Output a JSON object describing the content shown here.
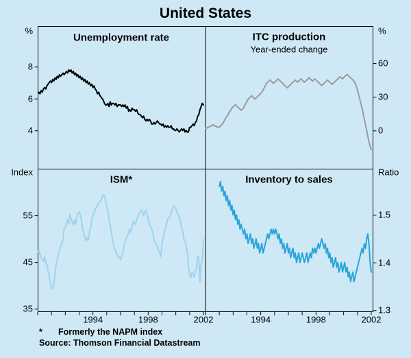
{
  "title": "United States",
  "palette": {
    "background": "#cfe8f5",
    "frame": "#000000",
    "text": "#000000"
  },
  "footnote": {
    "marker": "*",
    "text": "Formerly the NAPM index"
  },
  "source": "Source: Thomson Financial Datastream",
  "chart_data": [
    {
      "type": "line",
      "id": "unemployment-rate",
      "quadrant": "tl",
      "title": "Unemployment rate",
      "subtitle": "",
      "unit": "%",
      "ylim": [
        1.6,
        10.55
      ],
      "yticks": [
        {
          "value": 8,
          "label": "8"
        },
        {
          "value": 6,
          "label": "6"
        },
        {
          "value": 4,
          "label": "4"
        }
      ],
      "xlim": [
        1990,
        2002.15
      ],
      "xticks": [],
      "grid": false,
      "series": [
        {
          "name": "Unemployment rate",
          "color": "#000000",
          "start": 1990.0,
          "step": 0.0833333,
          "values": [
            6.3,
            6.4,
            6.3,
            6.5,
            6.4,
            6.6,
            6.7,
            6.6,
            6.8,
            6.9,
            7.0,
            7.1,
            7.0,
            7.2,
            7.1,
            7.3,
            7.2,
            7.4,
            7.3,
            7.5,
            7.4,
            7.5,
            7.6,
            7.5,
            7.6,
            7.7,
            7.6,
            7.8,
            7.7,
            7.8,
            7.6,
            7.7,
            7.5,
            7.6,
            7.4,
            7.5,
            7.3,
            7.4,
            7.2,
            7.3,
            7.1,
            7.2,
            7.0,
            7.1,
            6.9,
            7.0,
            6.8,
            6.9,
            6.7,
            6.8,
            6.6,
            6.5,
            6.3,
            6.4,
            6.2,
            6.1,
            6.0,
            5.9,
            5.7,
            5.6,
            5.6,
            5.7,
            5.5,
            5.8,
            5.6,
            5.7,
            5.7,
            5.6,
            5.7,
            5.5,
            5.6,
            5.6,
            5.6,
            5.5,
            5.6,
            5.5,
            5.6,
            5.4,
            5.5,
            5.2,
            5.3,
            5.2,
            5.4,
            5.3,
            5.3,
            5.2,
            5.3,
            5.1,
            5.0,
            5.0,
            4.9,
            4.8,
            4.9,
            4.7,
            4.6,
            4.7,
            4.6,
            4.7,
            4.6,
            4.4,
            4.4,
            4.5,
            4.4,
            4.5,
            4.6,
            4.5,
            4.4,
            4.4,
            4.3,
            4.4,
            4.2,
            4.3,
            4.2,
            4.3,
            4.2,
            4.2,
            4.3,
            4.1,
            4.1,
            4.0,
            4.0,
            4.1,
            4.0,
            3.9,
            4.0,
            4.1,
            4.0,
            4.1,
            3.9,
            4.0,
            3.9,
            3.9,
            4.2,
            4.2,
            4.3,
            4.4,
            4.3,
            4.5,
            4.6,
            4.9,
            5.0,
            5.3,
            5.5,
            5.7,
            5.6
          ]
        }
      ]
    },
    {
      "type": "line",
      "id": "itc-production",
      "quadrant": "tr",
      "title": "ITC production",
      "subtitle": "Year-ended change",
      "unit": "%",
      "ylim": [
        -34,
        93
      ],
      "yticks": [
        {
          "value": 60,
          "label": "60"
        },
        {
          "value": 30,
          "label": "30"
        },
        {
          "value": 0,
          "label": "0"
        }
      ],
      "xlim": [
        1990,
        2002.15
      ],
      "xticks": [],
      "grid": false,
      "series": [
        {
          "name": "ITC production year-ended change",
          "color": "#9b9b9b",
          "start": 1990.0,
          "step": 0.0833333,
          "values": [
            2,
            2,
            3,
            3,
            4,
            4,
            5,
            5,
            4,
            4,
            3,
            3,
            3,
            4,
            5,
            6,
            8,
            10,
            12,
            13,
            15,
            17,
            18,
            20,
            21,
            22,
            23,
            22,
            21,
            20,
            19,
            18,
            19,
            20,
            22,
            24,
            26,
            28,
            29,
            30,
            31,
            30,
            29,
            28,
            29,
            30,
            31,
            32,
            33,
            34,
            36,
            38,
            40,
            42,
            43,
            44,
            45,
            44,
            43,
            42,
            43,
            44,
            45,
            46,
            45,
            44,
            43,
            42,
            41,
            40,
            39,
            38,
            39,
            40,
            41,
            42,
            43,
            44,
            45,
            44,
            43,
            44,
            45,
            46,
            45,
            44,
            43,
            44,
            45,
            46,
            47,
            46,
            45,
            44,
            45,
            46,
            45,
            44,
            43,
            42,
            41,
            40,
            41,
            42,
            43,
            44,
            45,
            44,
            43,
            42,
            41,
            42,
            43,
            44,
            45,
            46,
            47,
            48,
            47,
            46,
            47,
            48,
            49,
            50,
            49,
            48,
            47,
            46,
            45,
            44,
            42,
            40,
            36,
            32,
            28,
            24,
            20,
            15,
            10,
            5,
            0,
            -5,
            -10,
            -14,
            -17
          ]
        }
      ]
    },
    {
      "type": "line",
      "id": "ism",
      "quadrant": "bl",
      "title": "ISM*",
      "subtitle": "",
      "unit": "Index",
      "ylim": [
        34.3,
        65.0
      ],
      "yticks": [
        {
          "value": 55,
          "label": "55"
        },
        {
          "value": 45,
          "label": "45"
        },
        {
          "value": 35,
          "label": "35"
        }
      ],
      "xlim": [
        1990,
        2002.15
      ],
      "xticks": [
        {
          "value": 1994,
          "label": "1994"
        },
        {
          "value": 1998,
          "label": "1998"
        },
        {
          "value": 2002,
          "label": "2002"
        }
      ],
      "grid": false,
      "series": [
        {
          "name": "ISM index",
          "color": "#9ed3ee",
          "start": 1990.0,
          "step": 0.0833333,
          "values": [
            47.2,
            47.4,
            46.8,
            46.0,
            45.4,
            45.2,
            46.2,
            45.0,
            44.4,
            43.2,
            41.8,
            40.6,
            39.2,
            39.4,
            40.0,
            42.4,
            44.5,
            45.5,
            46.8,
            47.6,
            48.4,
            49.0,
            49.8,
            52.2,
            52.4,
            53.5,
            54.1,
            53.1,
            55.2,
            54.3,
            53.6,
            53.0,
            54.1,
            53.2,
            54.5,
            55.4,
            55.8,
            55.2,
            53.9,
            52.1,
            51.2,
            50.3,
            49.5,
            50.2,
            49.7,
            51.6,
            52.3,
            54.1,
            55.1,
            55.5,
            56.3,
            56.8,
            57.2,
            57.6,
            57.9,
            58.3,
            58.9,
            59.4,
            59.2,
            58.1,
            57.1,
            55.8,
            54.2,
            52.9,
            51.5,
            49.8,
            48.6,
            47.9,
            47.1,
            46.5,
            46.2,
            46.0,
            45.5,
            46.3,
            47.1,
            48.4,
            49.3,
            50.2,
            50.5,
            51.3,
            52.1,
            51.4,
            52.6,
            53.8,
            53.5,
            53.1,
            54.2,
            54.6,
            55.3,
            55.8,
            56.2,
            56.0,
            54.9,
            55.6,
            56.1,
            55.3,
            54.1,
            53.2,
            52.6,
            52.1,
            51.3,
            49.8,
            49.2,
            48.9,
            48.3,
            47.6,
            46.9,
            46.2,
            49.0,
            50.2,
            51.3,
            52.1,
            53.2,
            54.2,
            54.5,
            54.8,
            55.7,
            56.3,
            57.0,
            56.8,
            56.4,
            55.8,
            55.1,
            54.7,
            53.9,
            52.4,
            51.6,
            49.9,
            49.6,
            48.4,
            47.2,
            43.9,
            42.3,
            41.6,
            42.8,
            42.5,
            41.8,
            43.2,
            43.5,
            46.3,
            45.8,
            40.8,
            44.6,
            45.3,
            49.9
          ]
        }
      ]
    },
    {
      "type": "line",
      "id": "inventory-to-sales",
      "quadrant": "br",
      "title": "Inventory to sales",
      "subtitle": "",
      "unit": "Ratio",
      "ylim": [
        1.296,
        1.597
      ],
      "yticks": [
        {
          "value": 1.5,
          "label": "1.5"
        },
        {
          "value": 1.4,
          "label": "1.4"
        },
        {
          "value": 1.3,
          "label": "1.3"
        }
      ],
      "xlim": [
        1990,
        2002.15
      ],
      "xticks": [
        {
          "value": 1994,
          "label": "1994"
        },
        {
          "value": 1998,
          "label": "1998"
        },
        {
          "value": 2002,
          "label": "2002"
        }
      ],
      "grid": false,
      "series": [
        {
          "name": "Inventory to sales ratio",
          "color": "#29a4db",
          "start": 1991.0,
          "step": 0.0833333,
          "values": [
            1.56,
            1.57,
            1.55,
            1.56,
            1.54,
            1.55,
            1.53,
            1.54,
            1.52,
            1.53,
            1.51,
            1.52,
            1.5,
            1.51,
            1.49,
            1.5,
            1.48,
            1.49,
            1.47,
            1.48,
            1.47,
            1.46,
            1.47,
            1.45,
            1.46,
            1.44,
            1.45,
            1.46,
            1.44,
            1.45,
            1.43,
            1.44,
            1.45,
            1.43,
            1.44,
            1.42,
            1.43,
            1.44,
            1.42,
            1.43,
            1.44,
            1.45,
            1.46,
            1.45,
            1.46,
            1.47,
            1.46,
            1.47,
            1.46,
            1.47,
            1.46,
            1.45,
            1.46,
            1.44,
            1.45,
            1.43,
            1.44,
            1.42,
            1.43,
            1.44,
            1.42,
            1.43,
            1.41,
            1.42,
            1.43,
            1.41,
            1.42,
            1.4,
            1.41,
            1.42,
            1.4,
            1.41,
            1.42,
            1.41,
            1.4,
            1.41,
            1.42,
            1.4,
            1.41,
            1.42,
            1.41,
            1.43,
            1.42,
            1.43,
            1.42,
            1.43,
            1.44,
            1.43,
            1.44,
            1.45,
            1.44,
            1.43,
            1.44,
            1.42,
            1.43,
            1.41,
            1.42,
            1.4,
            1.41,
            1.39,
            1.4,
            1.41,
            1.39,
            1.4,
            1.38,
            1.39,
            1.4,
            1.38,
            1.39,
            1.4,
            1.38,
            1.39,
            1.37,
            1.38,
            1.36,
            1.37,
            1.38,
            1.36,
            1.37,
            1.38,
            1.39,
            1.4,
            1.41,
            1.42,
            1.43,
            1.42,
            1.44,
            1.43,
            1.45,
            1.46,
            1.44,
            1.4,
            1.38
          ]
        }
      ]
    }
  ]
}
